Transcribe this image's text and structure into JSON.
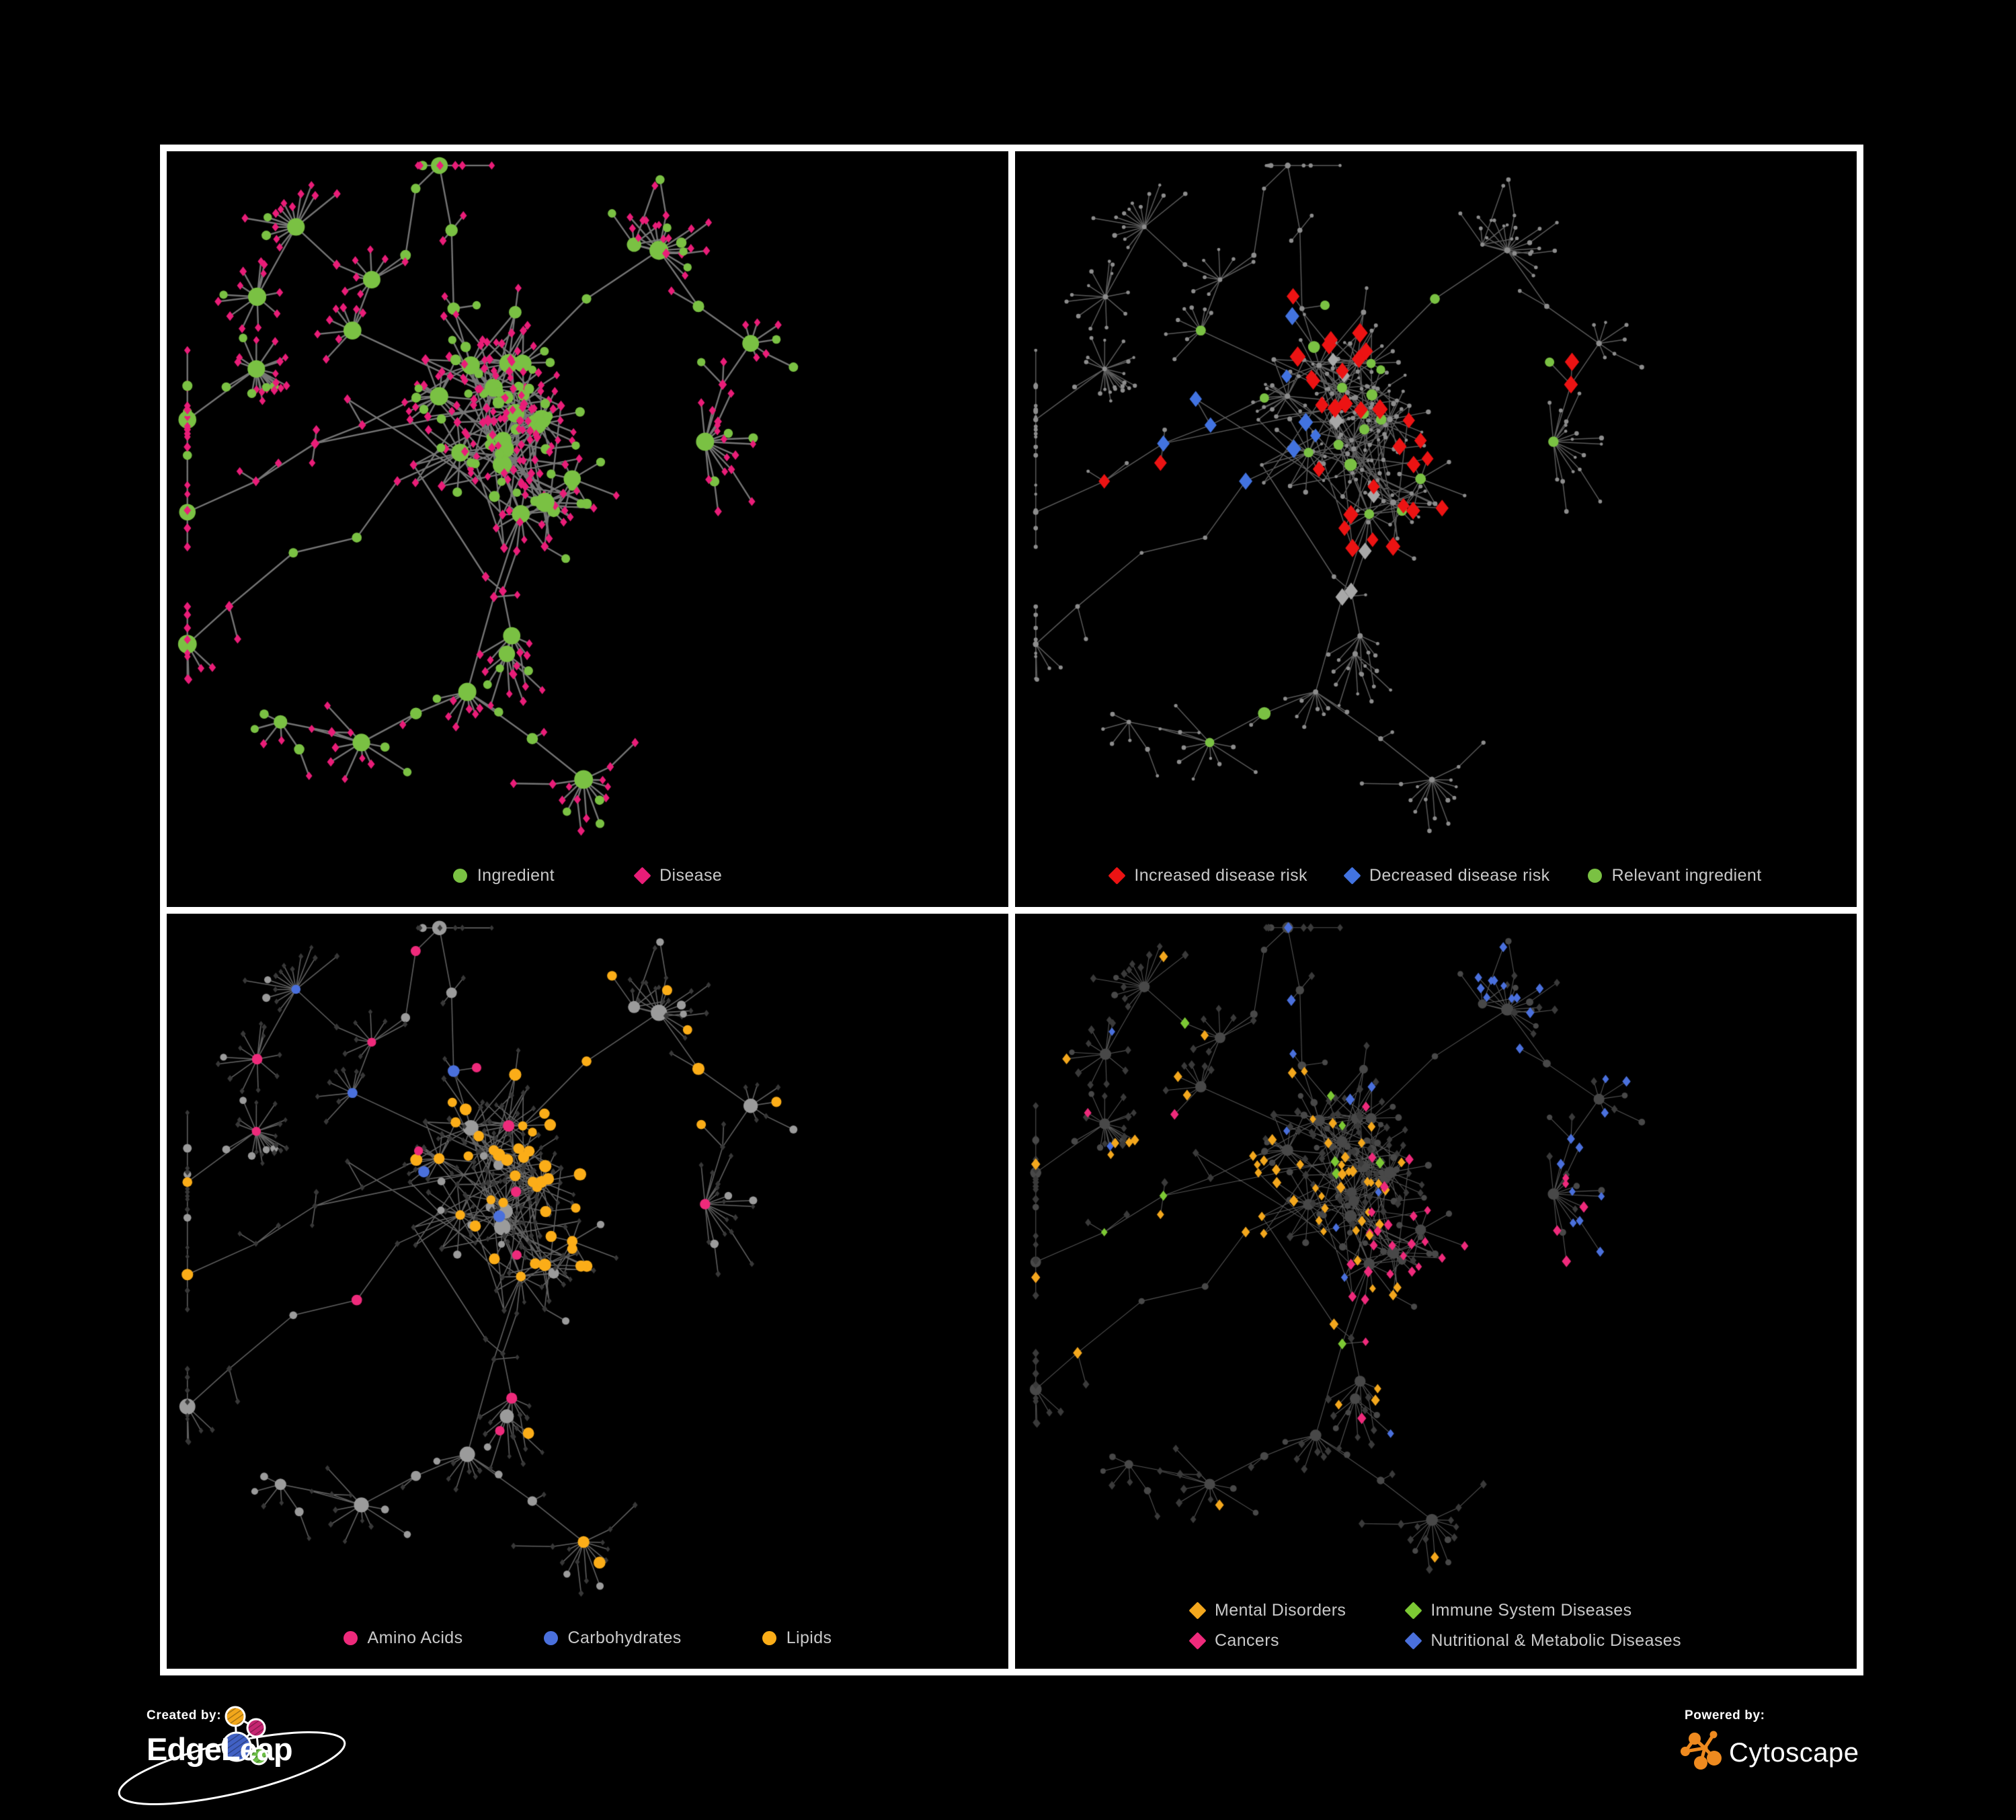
{
  "figure": {
    "background": "#000000",
    "frame_color": "#ffffff"
  },
  "panels": [
    {
      "id": "ingredients-diseases",
      "legend": [
        {
          "shape": "circle",
          "color": "#7AC143",
          "label": "Ingredient"
        },
        {
          "shape": "diamond",
          "color": "#E91D78",
          "label": "Disease"
        }
      ],
      "paint": {
        "edge": {
          "color": "#7b7b7b",
          "width": 2.4,
          "alpha": 0.95
        },
        "base": {
          "ingredient": {
            "shape": "circle",
            "color": "#7AC143",
            "size": [
              6,
              13
            ]
          },
          "disease": {
            "shape": "diamond",
            "color": "#E91D78",
            "size": [
              6,
              10
            ]
          }
        },
        "groups": []
      }
    },
    {
      "id": "disease-risk",
      "legend": [
        {
          "shape": "diamond",
          "color": "#EC1313",
          "label": "Increased disease risk"
        },
        {
          "shape": "diamond",
          "color": "#4273E0",
          "label": "Decreased disease risk"
        },
        {
          "shape": "circle",
          "color": "#7AC143",
          "label": "Relevant ingredient"
        }
      ],
      "paint": {
        "edge": {
          "color": "#6a6a6a",
          "width": 1.5,
          "alpha": 0.85
        },
        "base": {
          "ingredient": {
            "shape": "circle",
            "color": "#8d8d8d",
            "size": [
              2.6,
              3.4
            ]
          },
          "disease": {
            "shape": "circle",
            "color": "#8d8d8d",
            "size": [
              2.2,
              2.9
            ]
          }
        },
        "groups": [
          {
            "name": "decreased-risk",
            "shape": "diamond",
            "color": "#4273E0",
            "size": 12,
            "target": "disease",
            "scatter": 0.004,
            "cap": 9,
            "foci": [
              [
                0.24,
                0.4,
                0.09,
                0.85
              ],
              [
                0.8,
                0.27,
                0.06,
                0.95
              ]
            ]
          },
          {
            "name": "unchanged",
            "shape": "diamond",
            "color": "#A8A8A8",
            "size": 12,
            "target": "disease",
            "scatter": 0.0,
            "cap": 7,
            "foci": [
              [
                0.38,
                0.42,
                0.2,
                0.55
              ]
            ]
          },
          {
            "name": "increased-risk",
            "shape": "diamond",
            "color": "#EC1313",
            "size": 13,
            "target": "disease",
            "scatter": 0.02,
            "cap": 34,
            "foci": [
              [
                0.4,
                0.4,
                0.28,
                0.9
              ]
            ]
          },
          {
            "name": "relevant-ingredient",
            "shape": "circle",
            "color": "#7AC143",
            "size": 8,
            "target": "ingredient",
            "scatter": 0.02,
            "cap": 22,
            "foci": [
              [
                0.42,
                0.4,
                0.3,
                0.55
              ]
            ]
          }
        ]
      }
    },
    {
      "id": "ingredient-classes",
      "legend": [
        {
          "shape": "circle",
          "color": "#EE2A7B",
          "label": "Amino Acids"
        },
        {
          "shape": "circle",
          "color": "#4A70DC",
          "label": "Carbohydrates"
        },
        {
          "shape": "circle",
          "color": "#FBAD18",
          "label": "Lipids"
        }
      ],
      "paint": {
        "edge": {
          "color": "#787878",
          "width": 1.6,
          "alpha": 0.8
        },
        "base": {
          "ingredient": {
            "shape": "circle",
            "color": "#9b9b9b",
            "size": [
              5,
              11
            ]
          },
          "disease": {
            "shape": "diamond",
            "color": "#383838",
            "size": [
              4,
              5.5
            ]
          }
        },
        "groups": [
          {
            "name": "carbohydrates",
            "shape": "circle",
            "color": "#4A70DC",
            "size": 8,
            "target": "ingredient",
            "scatter": 0.012,
            "cap": 13,
            "foci": [
              [
                0.21,
                0.31,
                0.1,
                0.85
              ]
            ]
          },
          {
            "name": "lipids",
            "shape": "circle",
            "color": "#FBAD18",
            "size": 8,
            "target": "ingredient",
            "scatter": 0.05,
            "cap": 60,
            "foci": [
              [
                0.49,
                0.33,
                0.17,
                1.0
              ],
              [
                0.42,
                0.62,
                0.3,
                0.18
              ]
            ]
          },
          {
            "name": "amino-acids",
            "shape": "circle",
            "color": "#EE2A7B",
            "size": 8,
            "target": "ingredient",
            "scatter": 0.09,
            "cap": 21,
            "foci": []
          }
        ]
      }
    },
    {
      "id": "disease-classes",
      "legend": [
        {
          "shape": "diamond",
          "color": "#F3A71D",
          "label": "Mental Disorders"
        },
        {
          "shape": "diamond",
          "color": "#7CC834",
          "label": "Immune System Diseases"
        },
        {
          "shape": "diamond",
          "color": "#EE2A7B",
          "label": "Cancers"
        },
        {
          "shape": "diamond",
          "color": "#4A70DC",
          "label": "Nutritional & Metabolic Diseases"
        }
      ],
      "paint": {
        "edge": {
          "color": "#a8a8a8",
          "width": 1.1,
          "alpha": 0.5
        },
        "base": {
          "ingredient": {
            "shape": "circle",
            "color": "#484848",
            "size": [
              4,
              8
            ]
          },
          "disease": {
            "shape": "diamond",
            "color": "#3a3a3a",
            "size": [
              5.5,
              7
            ]
          }
        },
        "groups": [
          {
            "name": "mental-disorders",
            "shape": "diamond",
            "color": "#F3A71D",
            "size": 7.5,
            "target": "disease",
            "scatter": 0.012,
            "cap": 115,
            "foci": [
              [
                0.25,
                0.54,
                0.17,
                1.0
              ]
            ]
          },
          {
            "name": "cancers",
            "shape": "diamond",
            "color": "#EE2A7B",
            "size": 7.5,
            "target": "disease",
            "scatter": 0.015,
            "cap": 75,
            "foci": [
              [
                0.5,
                0.57,
                0.13,
                0.95
              ],
              [
                0.62,
                0.4,
                0.08,
                0.5
              ],
              [
                0.92,
                0.23,
                0.07,
                0.7
              ]
            ]
          },
          {
            "name": "immune-system",
            "shape": "diamond",
            "color": "#7CC834",
            "size": 7.5,
            "target": "disease",
            "scatter": 0.02,
            "cap": 9,
            "foci": [
              [
                0.45,
                0.45,
                0.25,
                0.3
              ]
            ]
          },
          {
            "name": "nutritional-metabolic",
            "shape": "diamond",
            "color": "#4A70DC",
            "size": 7.5,
            "target": "disease",
            "scatter": 0.045,
            "cap": 90,
            "foci": [
              [
                0.72,
                0.52,
                0.14,
                0.8
              ],
              [
                0.56,
                0.1,
                0.13,
                0.6
              ],
              [
                0.86,
                0.32,
                0.09,
                0.6
              ],
              [
                0.33,
                0.06,
                0.08,
                0.5
              ]
            ]
          }
        ]
      }
    }
  ],
  "network": {
    "seed": 5,
    "nominal": [
      1240,
      1000
    ],
    "coreHubs": 13,
    "outerHubs": 17,
    "coreCenter": [
      0.4,
      0.42
    ],
    "burstModules": 4,
    "crossEdges": 46,
    "typeSplit": {
      "midIngredient": 0.55,
      "leafIngredient": 0.18
    }
  },
  "footer": {
    "created_by_label": "Created by:",
    "edgeleap_wordmark": "EdgeLeap",
    "powered_by_label": "Powered by:",
    "cytoscape_wordmark": "Cytoscape",
    "edgeleap_node_colors": {
      "orange": "#F2A71B",
      "magenta": "#C52571",
      "blue": "#4161C4",
      "green": "#6CBE45"
    },
    "cytoscape_icon_color": "#EE8A1F"
  }
}
